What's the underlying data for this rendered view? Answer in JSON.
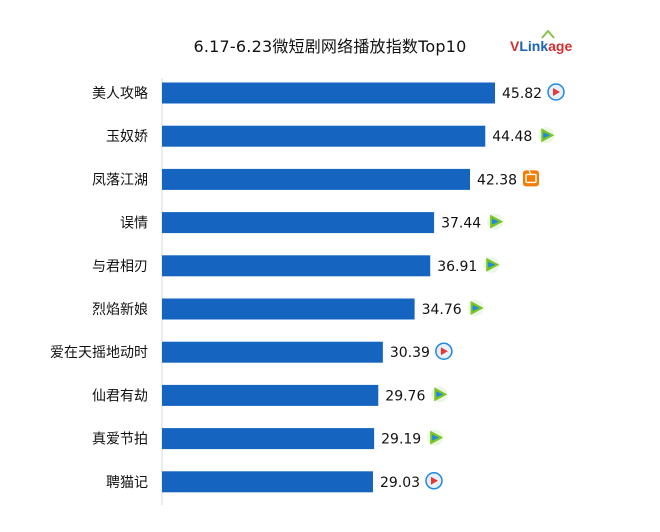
{
  "title": "6.17-6.23微短剧网络播放指数Top10",
  "logo": {
    "text_v": "V",
    "text_link": "Link",
    "text_age": "age"
  },
  "chart_data": {
    "type": "bar",
    "orientation": "horizontal",
    "title": "6.17-6.23微短剧网络播放指数Top10",
    "categories": [
      "美人攻略",
      "玉奴娇",
      "凤落江湖",
      "误情",
      "与君相刃",
      "烈焰新娘",
      "爱在天摇地动时",
      "仙君有劫",
      "真爱节拍",
      "聘猫记"
    ],
    "values": [
      45.82,
      44.48,
      42.38,
      37.44,
      36.91,
      34.76,
      30.39,
      29.76,
      29.19,
      29.03
    ],
    "platform_icons": [
      "tencent-video-icon",
      "iqiyi-icon",
      "mgtv-icon",
      "iqiyi-icon",
      "iqiyi-icon",
      "iqiyi-icon",
      "tencent-video-icon",
      "iqiyi-icon",
      "iqiyi-icon",
      "tencent-video-icon"
    ],
    "bar_color": "#1565c0",
    "xlim": [
      0,
      50
    ],
    "grid": false,
    "legend": "none"
  }
}
